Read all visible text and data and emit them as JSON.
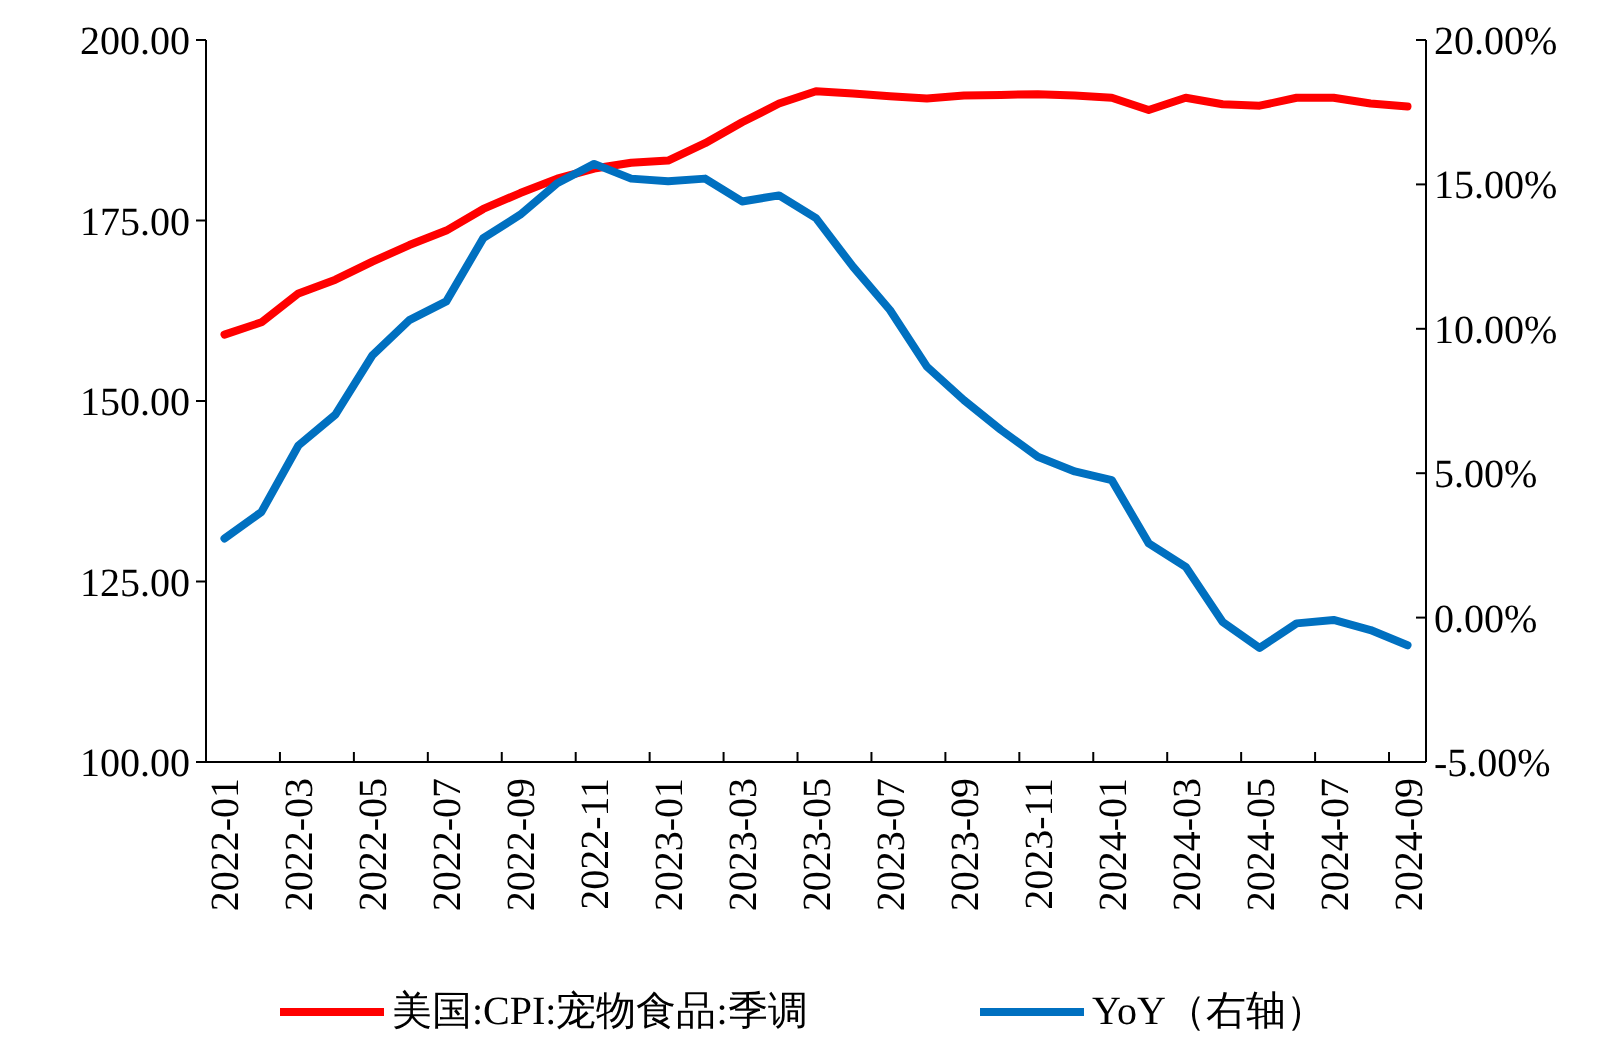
{
  "chart_data": {
    "type": "line",
    "categories": [
      "2022-01",
      null,
      "2022-03",
      null,
      "2022-05",
      null,
      "2022-07",
      null,
      "2022-09",
      null,
      "2022-11",
      null,
      "2023-01",
      null,
      "2023-03",
      null,
      "2023-05",
      null,
      "2023-07",
      null,
      "2023-09",
      null,
      "2023-11",
      null,
      "2024-01",
      null,
      "2024-03",
      null,
      "2024-05",
      null,
      "2024-07",
      null,
      "2024-09"
    ],
    "series": [
      {
        "name": "美国:CPI:宠物食品:季调",
        "color": "#ff0000",
        "values": [
          159.2,
          160.9,
          164.9,
          166.8,
          169.3,
          171.6,
          173.6,
          176.6,
          178.8,
          180.8,
          182.2,
          183.0,
          183.3,
          185.7,
          188.6,
          191.2,
          192.9,
          192.6,
          192.2,
          191.9,
          192.3,
          192.4,
          192.5,
          192.3,
          192.0,
          190.3,
          192.0,
          191.1,
          190.9,
          192.0,
          192.0,
          191.2,
          190.8
        ]
      },
      {
        "name": "YoY（右轴）",
        "color": "#0070c0",
        "axis": "y2",
        "values": [
          2.74,
          3.66,
          5.96,
          7.03,
          9.08,
          10.3,
          10.95,
          13.14,
          13.95,
          15.04,
          15.71,
          15.2,
          15.11,
          15.2,
          14.41,
          14.62,
          13.83,
          12.15,
          10.65,
          8.69,
          7.53,
          6.5,
          5.57,
          5.06,
          4.76,
          2.57,
          1.76,
          -0.15,
          -1.05,
          -0.2,
          -0.08,
          -0.43,
          -0.96
        ]
      }
    ],
    "ylim": [
      100,
      200
    ],
    "yticks": [
      {
        "value": 100,
        "label": "100.00"
      },
      {
        "value": 125,
        "label": "125.00"
      },
      {
        "value": 150,
        "label": "150.00"
      },
      {
        "value": 175,
        "label": "175.00"
      },
      {
        "value": 200,
        "label": "200.00"
      }
    ],
    "y2lim": [
      -5,
      20
    ],
    "y2ticks": [
      {
        "value": -5,
        "label": "-5.00%"
      },
      {
        "value": 0,
        "label": "0.00%"
      },
      {
        "value": 5,
        "label": "5.00%"
      },
      {
        "value": 10,
        "label": "10.00%"
      },
      {
        "value": 15,
        "label": "15.00%"
      },
      {
        "value": 20,
        "label": "20.00%"
      }
    ],
    "legend": "bottom"
  }
}
